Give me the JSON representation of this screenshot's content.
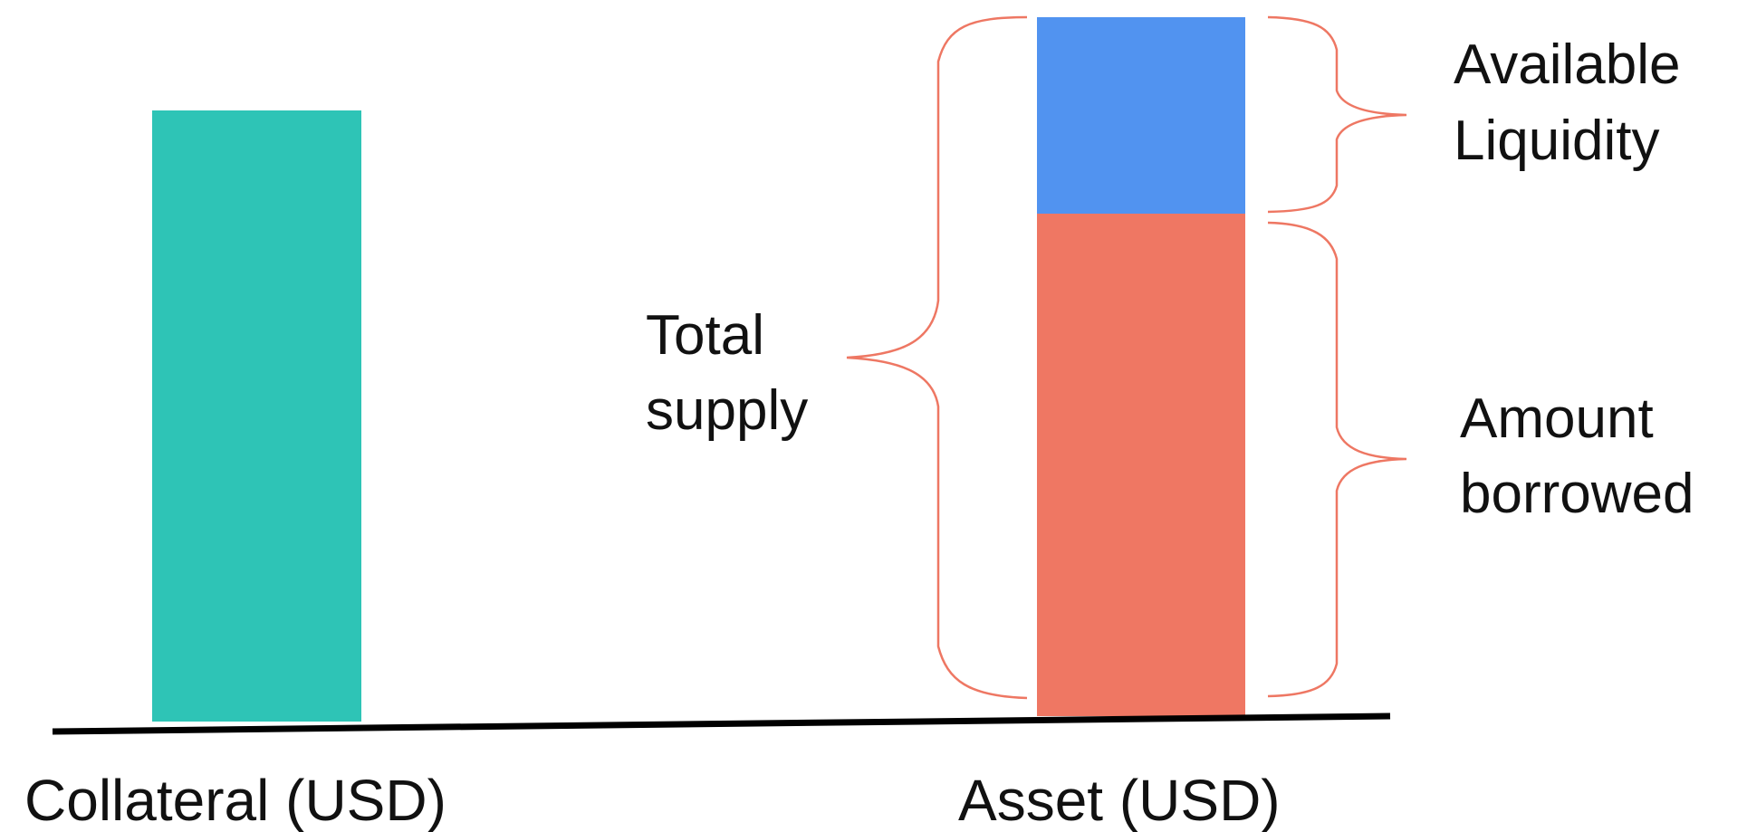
{
  "bars": [
    {
      "label": "Collateral (USD)"
    },
    {
      "label": "Asset (USD)"
    }
  ],
  "braces": [
    {
      "lines": [
        "Total",
        "supply"
      ]
    },
    {
      "lines": [
        "Available",
        "Liquidity"
      ]
    },
    {
      "lines": [
        "Amount",
        "borrowed"
      ]
    }
  ]
}
